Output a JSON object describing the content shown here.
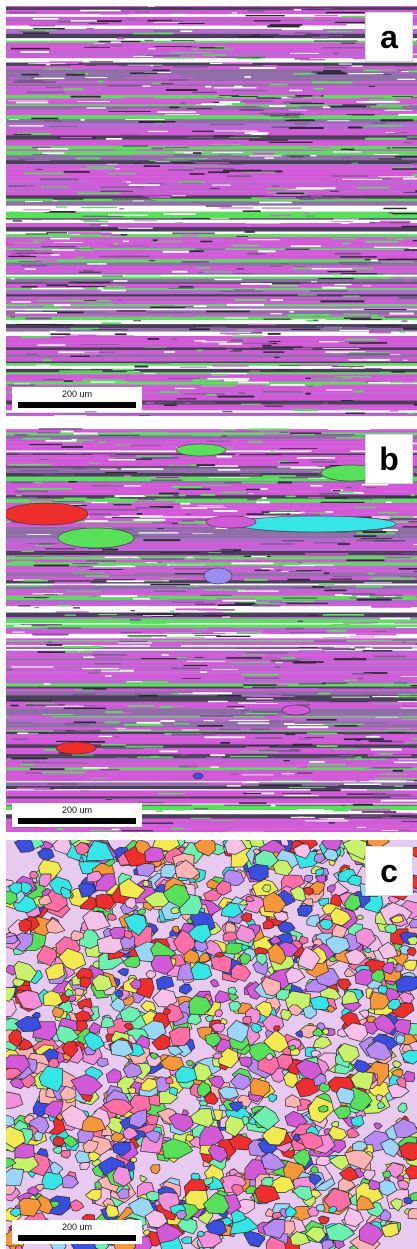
{
  "figure": {
    "panels": [
      {
        "label": "a",
        "scale_bar": "200 um",
        "microstructure": "banded-deformed"
      },
      {
        "label": "b",
        "scale_bar": "200 um",
        "microstructure": "banded-partially-recrystallized"
      },
      {
        "label": "c",
        "scale_bar": "200 um",
        "microstructure": "equiaxed-recrystallized"
      }
    ],
    "colors": {
      "magenta": "#d25ad8",
      "green": "#59e05b",
      "red": "#ee2d2d",
      "cyan": "#36e6e6",
      "blue": "#3a4fe0",
      "orange": "#f6973a",
      "yellow": "#f3ea52",
      "background": "#ffffff"
    }
  }
}
